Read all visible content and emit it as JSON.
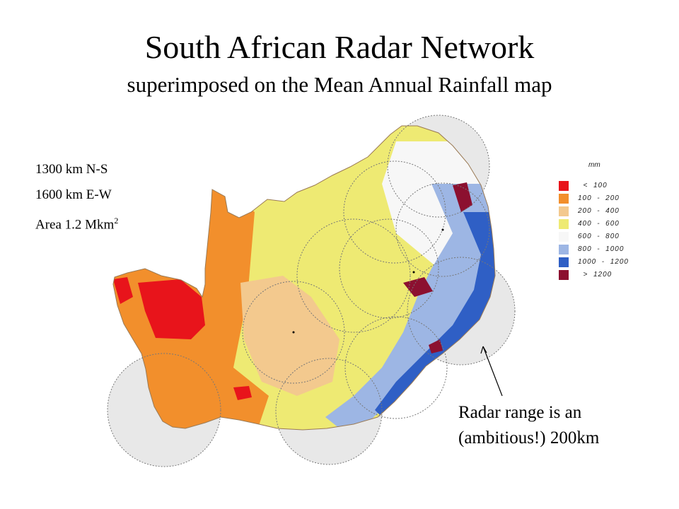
{
  "header": {
    "title": "South African Radar Network",
    "subtitle": "superimposed on the Mean Annual Rainfall map"
  },
  "facts": {
    "ns": "1300 km N-S",
    "ew": "1600 km E-W",
    "area_prefix": "Area 1.2 Mkm",
    "area_sup": "2"
  },
  "legend": {
    "unit": "mm",
    "items": [
      {
        "label": "  <  100",
        "color": "#e8141b"
      },
      {
        "label": "100  -  200",
        "color": "#f28f2c"
      },
      {
        "label": "200  -  400",
        "color": "#f3c98e"
      },
      {
        "label": "400  -  600",
        "color": "#eeea73"
      },
      {
        "label": "600  -  800",
        "color": "#f7f7f7"
      },
      {
        "label": "800  -  1000",
        "color": "#9db6e4"
      },
      {
        "label": "1000  -  1200",
        "color": "#2f5fc5"
      },
      {
        "label": "  >  1200",
        "color": "#8c1030"
      }
    ]
  },
  "note": {
    "line1": "Radar range is an",
    "line2": "(ambitious!) 200km"
  }
}
